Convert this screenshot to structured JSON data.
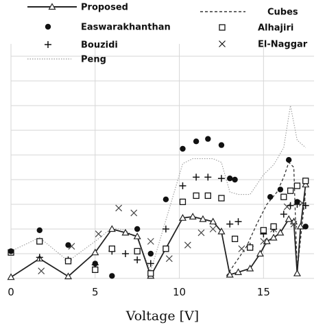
{
  "chart_data": {
    "type": "line",
    "xlabel": "Voltage [V]",
    "ylabel": "",
    "title": "",
    "xlim": [
      0,
      18
    ],
    "ylim": [
      0,
      9.5
    ],
    "x_ticks": [
      "0",
      "5",
      "10",
      "15"
    ],
    "x_tick_values": [
      0,
      5,
      10,
      15
    ],
    "y_gridlines": [
      0,
      1,
      2,
      3,
      4,
      5,
      6,
      7,
      8,
      9
    ],
    "grid": true,
    "legend": {
      "placement": "top",
      "entries": [
        {
          "name": "Proposed",
          "style": "line-triangle"
        },
        {
          "name": "Cubes",
          "style": "dashed"
        },
        {
          "name": "Easwarakhanthan",
          "style": "filled-circle"
        },
        {
          "name": "Alhajiri",
          "style": "open-square"
        },
        {
          "name": "Bouzidi",
          "style": "plus"
        },
        {
          "name": "El-Naggar",
          "style": "cross"
        },
        {
          "name": "Peng",
          "style": "dotted"
        }
      ]
    },
    "series": [
      {
        "name": "Proposed",
        "style": "line-triangle",
        "color": "#222222",
        "x": [
          0,
          1.7,
          3.4,
          5,
          6,
          6.8,
          7.5,
          8.3,
          10.2,
          10.8,
          11.4,
          12,
          12.5,
          13,
          13.5,
          14.2,
          14.8,
          15.2,
          15.6,
          16,
          16.5,
          16.8,
          17,
          17.2,
          17.5
        ],
        "y": [
          0.05,
          0.8,
          0.08,
          1.05,
          2.0,
          1.85,
          1.7,
          0.1,
          2.45,
          2.5,
          2.4,
          2.3,
          1.9,
          0.15,
          0.25,
          0.4,
          1.0,
          1.5,
          1.65,
          1.85,
          2.4,
          2.3,
          0.2,
          2.1,
          3.8
        ]
      },
      {
        "name": "Peng",
        "style": "dotted",
        "color": "#999999",
        "x": [
          0,
          1.7,
          3.4,
          5,
          6,
          6.8,
          7.5,
          8.3,
          10.2,
          10.8,
          11.4,
          12,
          12.5,
          13,
          13.5,
          14.2,
          15,
          15.6,
          16.2,
          16.6,
          17,
          17.5
        ],
        "y": [
          1.1,
          1.65,
          0.7,
          1.5,
          2.05,
          1.95,
          1.6,
          0.3,
          4.65,
          4.85,
          4.85,
          4.85,
          4.7,
          3.5,
          3.4,
          3.4,
          4.2,
          4.6,
          5.3,
          7.0,
          5.6,
          5.3
        ]
      },
      {
        "name": "Cubes",
        "style": "dashed",
        "color": "#333333",
        "x": [
          12.8,
          13.3,
          14,
          14.6,
          15.2,
          15.8,
          16.2,
          16.5,
          16.8,
          17,
          17.5
        ],
        "y": [
          0.1,
          0.6,
          1.3,
          2.2,
          3.0,
          3.5,
          4.1,
          4.7,
          4.5,
          0.3,
          3.5
        ]
      },
      {
        "name": "Easwarakhanthan",
        "style": "filled-circle",
        "color": "#111111",
        "x": [
          0,
          1.7,
          3.4,
          5,
          6,
          7.5,
          8.3,
          9.2,
          10.2,
          11,
          11.7,
          12.5,
          13,
          13.3,
          15.4,
          16,
          16.5,
          17,
          17.5
        ],
        "y": [
          1.1,
          1.95,
          1.35,
          0.6,
          0.1,
          2.0,
          1.0,
          3.2,
          5.25,
          5.55,
          5.65,
          5.4,
          4.05,
          4.0,
          3.3,
          3.6,
          4.8,
          3.1,
          2.1
        ]
      },
      {
        "name": "Alhajiri",
        "style": "open-square",
        "color": "#111111",
        "x": [
          0,
          1.7,
          3.4,
          5,
          6,
          7.5,
          8.3,
          9.2,
          10.2,
          11,
          11.7,
          12.5,
          13.3,
          14.2,
          15,
          15.6,
          16.2,
          16.6,
          17,
          17.5
        ],
        "y": [
          1.05,
          1.5,
          0.7,
          0.35,
          1.2,
          1.1,
          0.2,
          1.2,
          3.1,
          3.35,
          3.35,
          3.25,
          1.6,
          1.25,
          1.95,
          2.1,
          3.3,
          3.55,
          3.75,
          3.95
        ]
      },
      {
        "name": "Bouzidi",
        "style": "plus",
        "color": "#111111",
        "x": [
          1.7,
          3.4,
          5,
          6,
          6.8,
          7.5,
          8.3,
          9.2,
          10.2,
          11,
          11.7,
          12.5,
          13,
          13.5,
          14.2,
          15,
          15.6,
          16.2,
          16.6,
          17,
          17.5
        ],
        "y": [
          0.85,
          0.75,
          0.55,
          1.1,
          1.0,
          0.75,
          0.6,
          2.0,
          3.75,
          4.1,
          4.1,
          4.05,
          2.2,
          2.3,
          1.3,
          1.8,
          2.0,
          2.6,
          2.95,
          3.0,
          2.95
        ]
      },
      {
        "name": "El-Naggar",
        "style": "cross",
        "color": "#444444",
        "x": [
          1.8,
          3.6,
          5.2,
          6.4,
          7.3,
          8.3,
          9.4,
          10.5,
          11.3,
          12,
          13.7,
          15,
          15.6,
          16.4,
          16.8,
          17.3
        ],
        "y": [
          0.3,
          1.3,
          1.8,
          2.85,
          2.65,
          1.5,
          0.8,
          1.35,
          1.85,
          2.0,
          1.2,
          1.5,
          2.0,
          2.9,
          2.2,
          3.05
        ]
      }
    ]
  }
}
